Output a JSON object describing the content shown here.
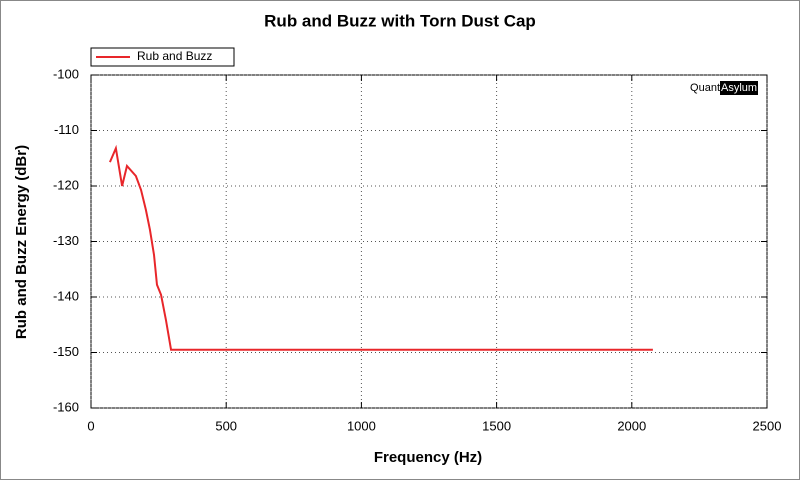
{
  "chart_data": {
    "type": "line",
    "title": "Rub and Buzz with Torn Dust Cap",
    "x_label": "Frequency (Hz)",
    "y_label": "Rub and Buzz Energy (dBr)",
    "watermark": [
      "Quant",
      "Asylum"
    ],
    "x": [
      70,
      92,
      115,
      133,
      166,
      185,
      203,
      218,
      233,
      244,
      259,
      277,
      296,
      2078
    ],
    "series": [
      {
        "name": "Rub and Buzz",
        "color": "#e8262a",
        "values": [
          -115.7,
          -113.2,
          -120,
          -116.4,
          -118.2,
          -120.7,
          -124.3,
          -127.9,
          -132.4,
          -137.8,
          -139.6,
          -144.1,
          -149.5,
          -149.5
        ]
      }
    ],
    "xlim": [
      0,
      2500
    ],
    "xticks": [
      0,
      500,
      1000,
      1500,
      2000,
      2500
    ],
    "ylim": [
      -160,
      -100
    ],
    "yticks": [
      -160,
      -150,
      -140,
      -130,
      -120,
      -110,
      -100
    ],
    "grid": true,
    "legend": "top-left"
  }
}
